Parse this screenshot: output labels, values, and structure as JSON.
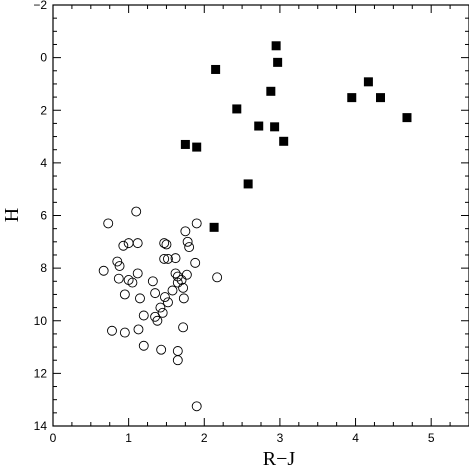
{
  "chart_data": {
    "type": "scatter",
    "title": "",
    "xlabel": "R−J",
    "ylabel": "H",
    "xlim": [
      0,
      5.5
    ],
    "ylim": [
      14,
      -2
    ],
    "y_inverted": true,
    "grid": false,
    "legend": "none",
    "x_major_ticks": [
      0,
      1,
      2,
      3,
      4,
      5
    ],
    "y_major_ticks": [
      -2,
      0,
      2,
      4,
      6,
      8,
      10,
      12,
      14
    ],
    "x_tick_labels": [
      "0",
      "1",
      "2",
      "3",
      "4",
      "5"
    ],
    "y_tick_labels": [
      "−2",
      "0",
      "2",
      "4",
      "6",
      "8",
      "10",
      "12",
      "14"
    ],
    "series": [
      {
        "marker": "filled-square",
        "color": "#000000",
        "points": [
          [
            2.95,
            -0.45
          ],
          [
            2.97,
            0.18
          ],
          [
            2.15,
            0.45
          ],
          [
            4.17,
            0.92
          ],
          [
            2.88,
            1.28
          ],
          [
            3.95,
            1.52
          ],
          [
            4.33,
            1.52
          ],
          [
            2.43,
            1.95
          ],
          [
            4.68,
            2.28
          ],
          [
            2.72,
            2.6
          ],
          [
            2.93,
            2.63
          ],
          [
            3.05,
            3.18
          ],
          [
            1.75,
            3.3
          ],
          [
            1.9,
            3.4
          ],
          [
            2.58,
            4.8
          ],
          [
            2.13,
            6.45
          ]
        ]
      },
      {
        "marker": "open-circle",
        "color": "#000000",
        "points": [
          [
            1.1,
            5.85
          ],
          [
            0.73,
            6.3
          ],
          [
            1.9,
            6.3
          ],
          [
            1.75,
            6.6
          ],
          [
            1.47,
            7.05
          ],
          [
            1.78,
            7.0
          ],
          [
            1.0,
            7.05
          ],
          [
            1.12,
            7.05
          ],
          [
            1.5,
            7.1
          ],
          [
            0.93,
            7.15
          ],
          [
            1.8,
            7.2
          ],
          [
            1.47,
            7.65
          ],
          [
            1.62,
            7.62
          ],
          [
            1.52,
            7.65
          ],
          [
            1.88,
            7.8
          ],
          [
            0.85,
            7.75
          ],
          [
            0.88,
            7.92
          ],
          [
            0.67,
            8.1
          ],
          [
            1.12,
            8.2
          ],
          [
            1.62,
            8.2
          ],
          [
            1.77,
            8.25
          ],
          [
            1.65,
            8.32
          ],
          [
            0.87,
            8.4
          ],
          [
            1.0,
            8.45
          ],
          [
            2.17,
            8.35
          ],
          [
            1.7,
            8.45
          ],
          [
            1.05,
            8.55
          ],
          [
            1.65,
            8.55
          ],
          [
            1.32,
            8.5
          ],
          [
            1.72,
            8.75
          ],
          [
            1.58,
            8.85
          ],
          [
            1.35,
            8.95
          ],
          [
            0.95,
            9.0
          ],
          [
            1.48,
            9.1
          ],
          [
            1.15,
            9.15
          ],
          [
            1.73,
            9.15
          ],
          [
            1.52,
            9.3
          ],
          [
            1.42,
            9.5
          ],
          [
            1.45,
            9.7
          ],
          [
            1.2,
            9.8
          ],
          [
            1.35,
            9.85
          ],
          [
            1.38,
            10.0
          ],
          [
            1.72,
            10.25
          ],
          [
            1.13,
            10.33
          ],
          [
            0.78,
            10.38
          ],
          [
            0.95,
            10.45
          ],
          [
            1.2,
            10.95
          ],
          [
            1.43,
            11.1
          ],
          [
            1.65,
            11.15
          ],
          [
            1.65,
            11.5
          ],
          [
            1.9,
            13.25
          ]
        ]
      }
    ]
  }
}
